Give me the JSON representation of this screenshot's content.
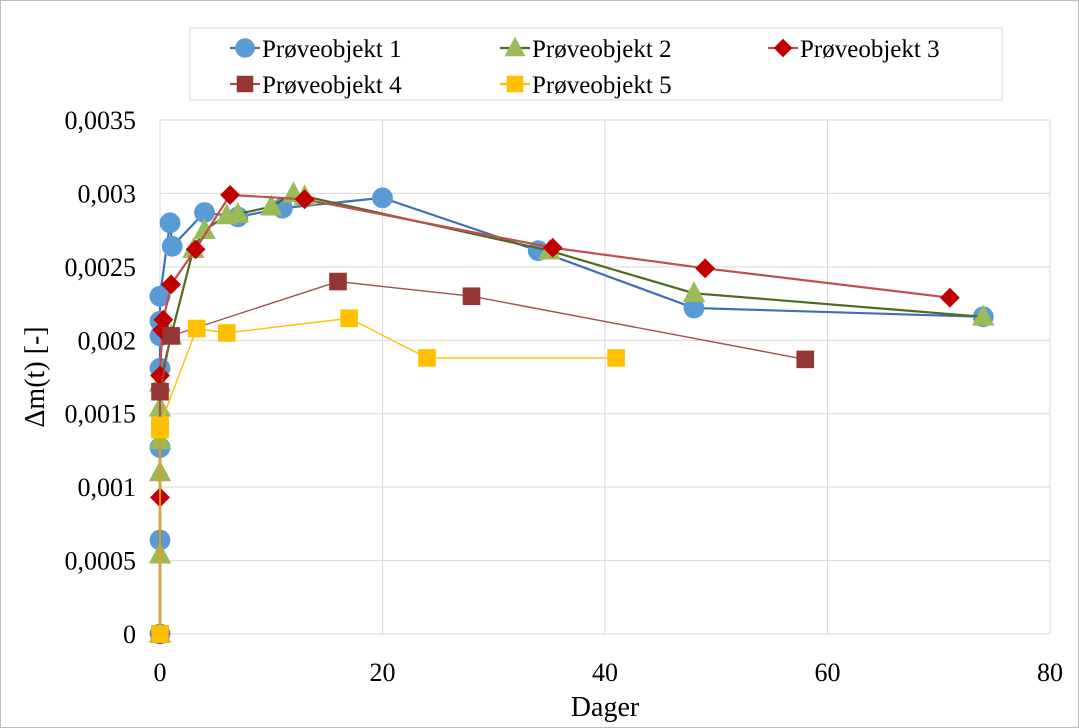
{
  "chart_data": {
    "type": "scatter",
    "xlabel": "Dager",
    "ylabel": "Δm(t) [-]",
    "xlim": [
      0,
      80
    ],
    "ylim": [
      0,
      0.0035
    ],
    "x_ticks": [
      "0",
      "20",
      "40",
      "60",
      "80"
    ],
    "y_ticks": [
      "0",
      "0,0005",
      "0,001",
      "0,0015",
      "0,002",
      "0,0025",
      "0,003",
      "0,0035"
    ],
    "grid": "horizontal and vertical",
    "legend_position": "top",
    "series": [
      {
        "name": "Prøveobjekt 1",
        "color": "#5b9bd5",
        "line_color": "#3f6fb5",
        "marker": "circle",
        "x": [
          0,
          0,
          0,
          0,
          0,
          0,
          0,
          0,
          0.9,
          1.1,
          4,
          7,
          11,
          20,
          34,
          48,
          74
        ],
        "y": [
          0,
          0.00064,
          0.00127,
          0.00181,
          0.00203,
          0.00213,
          0.0023,
          0.0023,
          0.0028,
          0.00264,
          0.00287,
          0.00284,
          0.0029,
          0.00297,
          0.00261,
          0.00222,
          0.00216
        ]
      },
      {
        "name": "Prøveobjekt 2",
        "color": "#9bbb59",
        "line_color": "#4e6b22",
        "marker": "triangle",
        "x": [
          0,
          0,
          0,
          0,
          0,
          0,
          1,
          3,
          4,
          6,
          7,
          10,
          12,
          13,
          35,
          48,
          74
        ],
        "y": [
          0,
          0.00054,
          0.0011,
          0.00132,
          0.00154,
          0.00171,
          0.00203,
          0.00262,
          0.00275,
          0.00285,
          0.00286,
          0.00291,
          0.003,
          0.00298,
          0.00261,
          0.00232,
          0.00216
        ]
      },
      {
        "name": "Prøveobjekt 3",
        "color": "#c00000",
        "line_color": "#c0504d",
        "marker": "diamond",
        "x": [
          0,
          0,
          0,
          0.2,
          0.3,
          1,
          3.2,
          6.3,
          13,
          35.3,
          49,
          71
        ],
        "y": [
          0,
          0.00093,
          0.00176,
          0.00207,
          0.00214,
          0.00238,
          0.00262,
          0.00299,
          0.00296,
          0.00263,
          0.00249,
          0.00229
        ]
      },
      {
        "name": "Prøveobjekt 4",
        "color": "#943634",
        "line_color": "#a0504d",
        "marker": "square",
        "x": [
          0,
          0,
          1,
          16,
          28,
          58
        ],
        "y": [
          0,
          0.00165,
          0.00203,
          0.0024,
          0.0023,
          0.00187
        ]
      },
      {
        "name": "Prøveobjekt 5",
        "color": "#ffc000",
        "line_color": "#ffc000",
        "marker": "square",
        "x": [
          0,
          0,
          0,
          3.3,
          6,
          17,
          24,
          41
        ],
        "y": [
          0,
          0.00139,
          0.00142,
          0.00208,
          0.00205,
          0.00215,
          0.00188,
          0.00188
        ]
      }
    ]
  }
}
